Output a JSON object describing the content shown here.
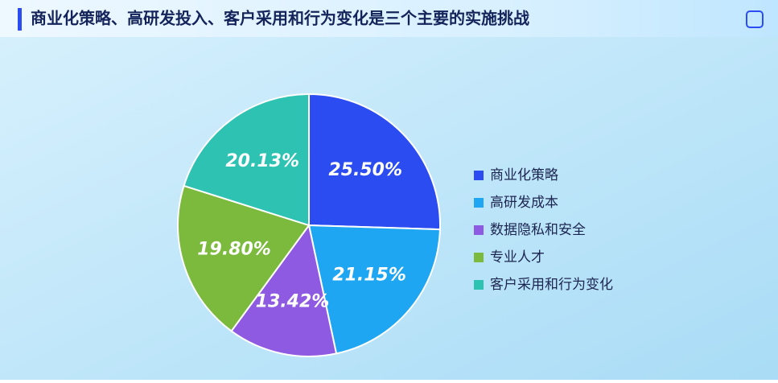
{
  "chart_data": {
    "type": "pie",
    "title": "商业化策略、高研发投入、客户采用和行为变化是三个主要的实施挑战",
    "categories": [
      "商业化策略",
      "高研发成本",
      "数据隐私和安全",
      "专业人才",
      "客户采用和行为变化"
    ],
    "values": [
      25.5,
      21.15,
      13.42,
      19.8,
      20.13
    ],
    "value_labels": [
      "25.50%",
      "21.15%",
      "13.42%",
      "19.80%",
      "20.13%"
    ],
    "colors": [
      "#2a4cf0",
      "#1ea6f2",
      "#8e5ae2",
      "#7cba3e",
      "#2ec2b2"
    ],
    "legend": "right"
  }
}
